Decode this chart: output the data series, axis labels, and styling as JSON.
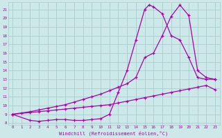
{
  "xlabel": "Windchill (Refroidissement éolien,°C)",
  "bg_color": "#cce8e8",
  "grid_color": "#aacccc",
  "line_color": "#aa00aa",
  "xlim": [
    -0.5,
    23.5
  ],
  "ylim": [
    7.8,
    21.8
  ],
  "xticks": [
    0,
    1,
    2,
    3,
    4,
    5,
    6,
    7,
    8,
    9,
    10,
    11,
    12,
    13,
    14,
    15,
    16,
    17,
    18,
    19,
    20,
    21,
    22,
    23
  ],
  "yticks": [
    8,
    9,
    10,
    11,
    12,
    13,
    14,
    15,
    16,
    17,
    18,
    19,
    20,
    21
  ],
  "curve1_x": [
    0,
    1,
    2,
    3,
    4,
    5,
    6,
    7,
    8,
    9,
    10,
    11,
    12,
    13,
    14,
    15,
    16,
    17,
    18,
    19,
    20,
    21,
    22,
    23
  ],
  "curve1_y": [
    9.0,
    9.1,
    9.2,
    9.3,
    9.4,
    9.5,
    9.6,
    9.7,
    9.8,
    9.9,
    10.0,
    10.1,
    10.3,
    10.5,
    10.7,
    10.9,
    11.1,
    11.3,
    11.5,
    11.7,
    11.9,
    12.1,
    12.3,
    11.8
  ],
  "curve2_x": [
    0,
    2,
    3,
    4,
    5,
    6,
    7,
    8,
    9,
    10,
    11,
    12,
    13,
    14,
    15,
    16,
    17,
    18,
    19,
    20,
    21,
    22,
    23
  ],
  "curve2_y": [
    9.0,
    9.3,
    9.5,
    9.7,
    9.9,
    10.1,
    10.4,
    10.7,
    11.0,
    11.3,
    11.7,
    12.1,
    12.5,
    13.2,
    15.5,
    16.0,
    18.0,
    20.2,
    21.5,
    20.3,
    14.0,
    13.2,
    13.0
  ],
  "curve3_x": [
    0,
    2,
    3,
    4,
    5,
    6,
    7,
    8,
    9,
    10,
    11,
    12,
    13,
    14,
    15,
    15.5,
    16,
    17,
    18,
    19,
    20,
    21,
    22,
    23
  ],
  "curve3_y": [
    9.0,
    8.3,
    8.2,
    8.3,
    8.4,
    8.4,
    8.3,
    8.3,
    8.4,
    8.5,
    9.0,
    11.5,
    14.0,
    17.5,
    21.0,
    21.5,
    21.3,
    20.5,
    18.0,
    17.5,
    15.5,
    13.2,
    13.0,
    13.0
  ]
}
